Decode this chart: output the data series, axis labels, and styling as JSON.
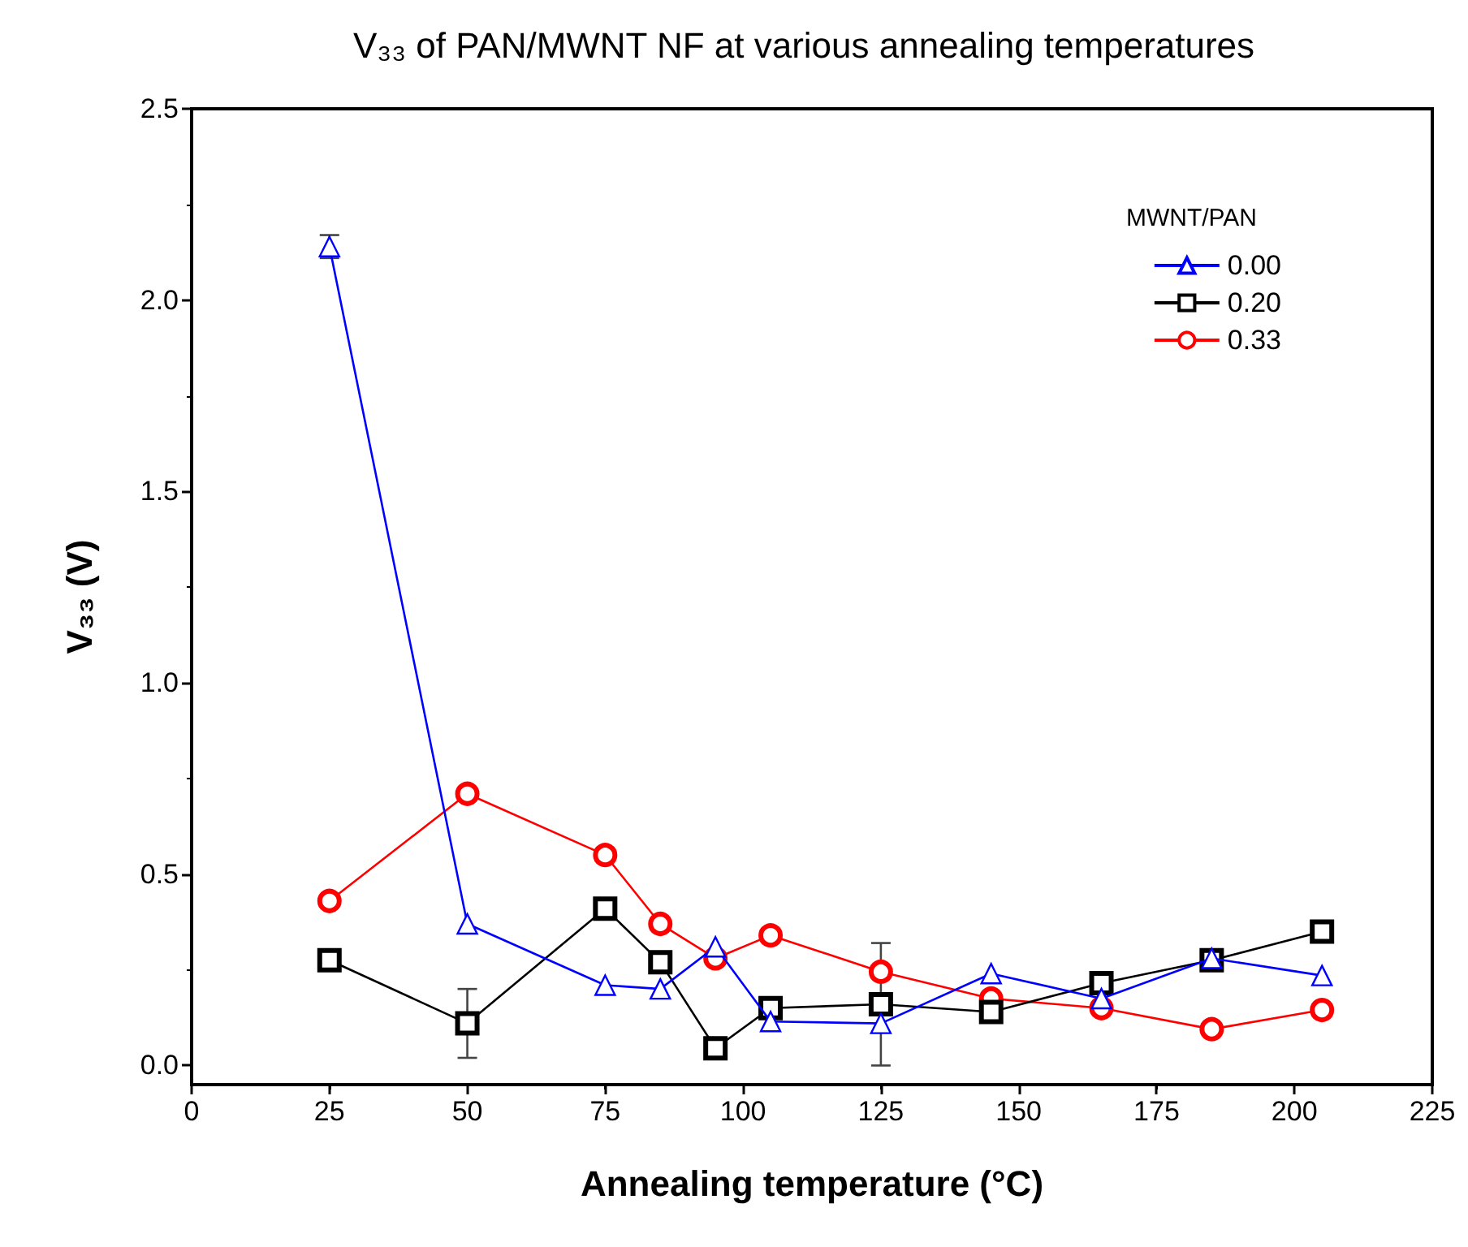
{
  "chart_data": {
    "type": "line",
    "title": "V₃₃ of PAN/MWNT NF at various annealing temperatures",
    "xlabel": "Annealing temperature (°C)",
    "ylabel": "V₃₃ (V)",
    "legend_title": "MWNT/PAN",
    "legend": "top right",
    "grid": false,
    "x": [
      25,
      50,
      75,
      85,
      95,
      105,
      125,
      145,
      165,
      185,
      205
    ],
    "xlim": [
      0,
      225
    ],
    "xticks": [
      0,
      25,
      50,
      75,
      100,
      125,
      150,
      175,
      200,
      225
    ],
    "ylim": [
      -0.05,
      2.5
    ],
    "yticks": [
      {
        "value": 0,
        "label": "0.0"
      },
      {
        "value": 0.5,
        "label": "0.5"
      },
      {
        "value": 1,
        "label": "1.0"
      },
      {
        "value": 1.5,
        "label": "1.5"
      },
      {
        "value": 2,
        "label": "2.0"
      },
      {
        "value": 2.5,
        "label": "2.5"
      }
    ],
    "series": [
      {
        "name": "0.00",
        "color": "#0000ff",
        "marker": "triangle",
        "values": [
          2.14,
          0.37,
          0.21,
          0.2,
          0.31,
          0.115,
          0.11,
          0.24,
          0.175,
          0.28,
          0.235
        ],
        "errors": [
          0.03,
          null,
          null,
          null,
          null,
          null,
          null,
          null,
          null,
          null,
          null
        ]
      },
      {
        "name": "0.20",
        "color": "#000000",
        "marker": "square",
        "values": [
          0.275,
          0.11,
          0.41,
          0.27,
          0.045,
          0.15,
          0.16,
          0.14,
          0.215,
          0.275,
          0.35
        ],
        "errors": [
          null,
          0.09,
          null,
          null,
          null,
          null,
          0.16,
          null,
          null,
          null,
          null
        ]
      },
      {
        "name": "0.33",
        "color": "#ff0000",
        "marker": "circle",
        "values": [
          0.43,
          0.71,
          0.55,
          0.37,
          0.28,
          0.34,
          0.245,
          0.175,
          0.15,
          0.095,
          0.145
        ]
      }
    ]
  }
}
